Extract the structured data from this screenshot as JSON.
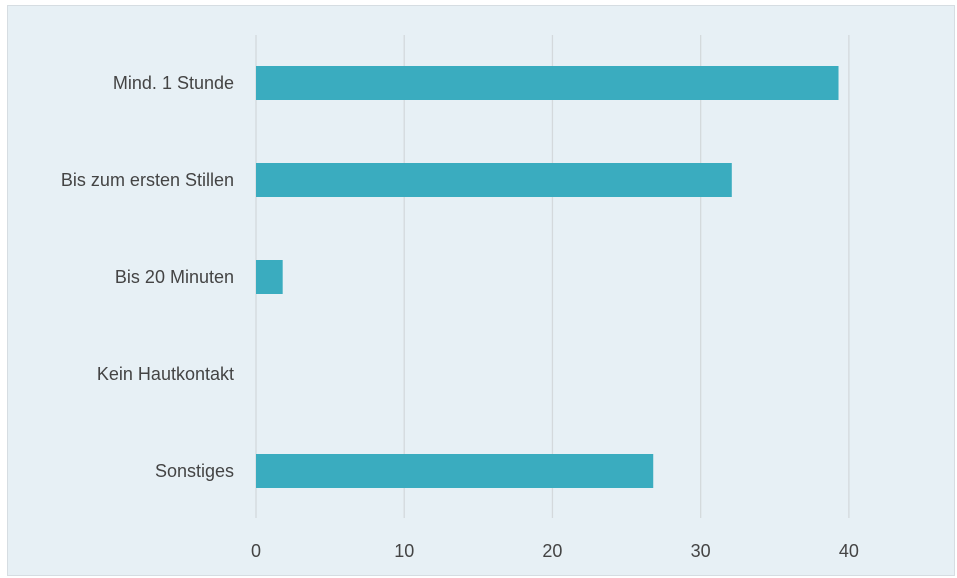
{
  "chart_data": {
    "type": "bar",
    "orientation": "horizontal",
    "categories": [
      "Mind. 1 Stunde",
      "Bis zum ersten Stillen",
      "Bis 20 Minuten",
      "Kein Hautkontakt",
      "Sonstiges"
    ],
    "values": [
      39.3,
      32.1,
      1.8,
      0,
      26.8
    ],
    "xlim": [
      0,
      45
    ],
    "xticks": [
      0,
      10,
      20,
      30,
      40
    ],
    "grid": true,
    "title": "",
    "xlabel": "",
    "ylabel": "",
    "colors": {
      "bar": "#3aacbf",
      "grid": "#d4d9dc",
      "background": "#e7f0f5",
      "text": "#444444"
    }
  }
}
